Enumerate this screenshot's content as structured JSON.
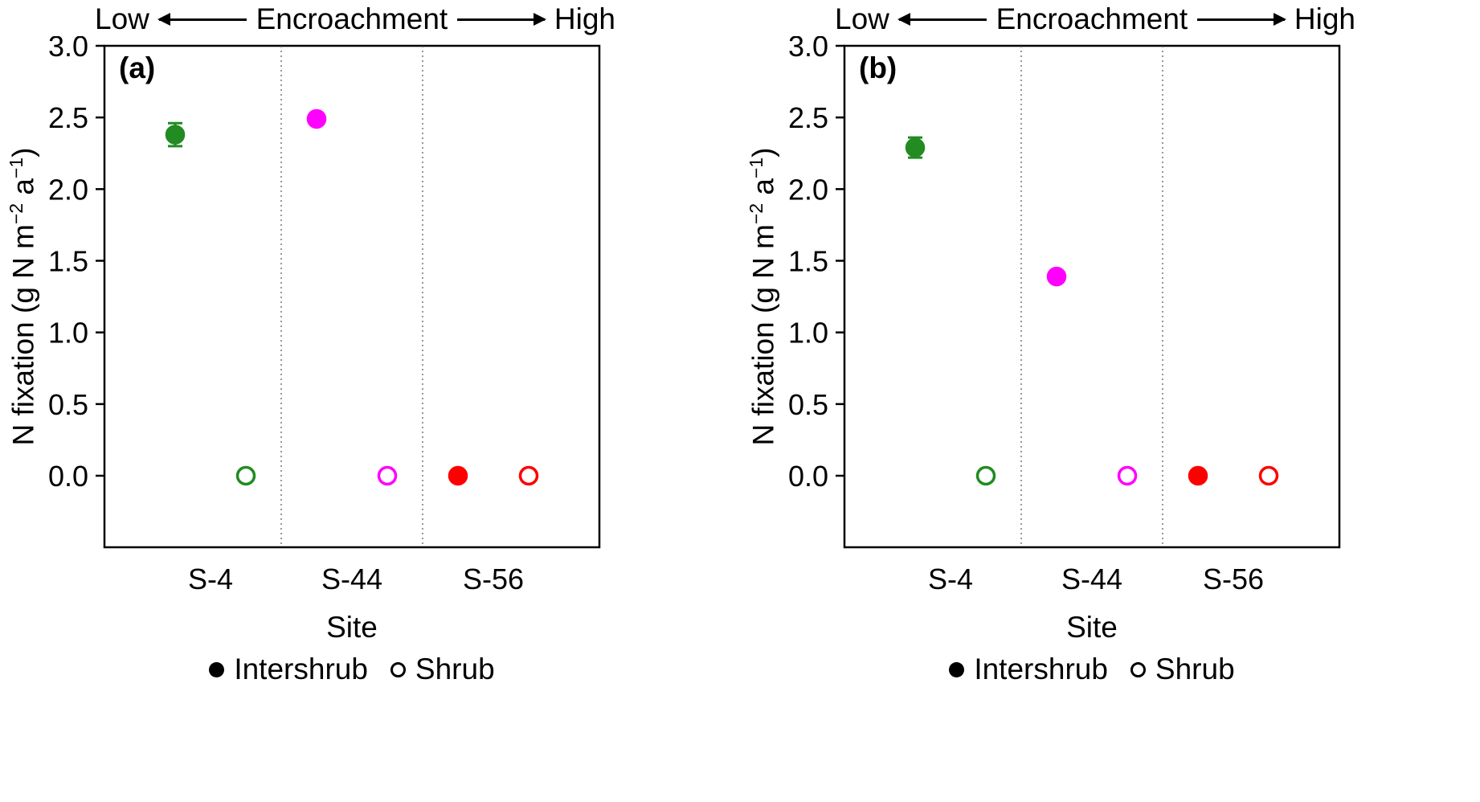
{
  "chart_data": {
    "type": "scatter",
    "title": "",
    "top_axis": {
      "low": "Low",
      "label": "Encroachment",
      "high": "High"
    },
    "xlabel": "Site",
    "ylabel": "N fixation (g N m^-2 a^-1)",
    "ylabel_parts": {
      "t1": "N fixation (g N m",
      "s1": "−2",
      "t2": " a",
      "s2": "−1",
      "t3": ")"
    },
    "ylim": [
      -0.5,
      3.0
    ],
    "yticks": [
      3,
      2.5,
      2,
      1.5,
      1,
      0.5,
      0
    ],
    "grid": false,
    "sites": [
      "S-4",
      "S-44",
      "S-56"
    ],
    "site_order_note": "encroachment increases left to right",
    "site_colors": {
      "S-4": "#228B22",
      "S-44": "#FF00FF",
      "S-56": "#FF0000"
    },
    "legend": [
      {
        "label": "Intershrub",
        "marker": "filled"
      },
      {
        "label": "Shrub",
        "marker": "open"
      }
    ],
    "legend_position": "bottom",
    "panels": [
      {
        "label": "(a)",
        "points": [
          {
            "site": "S-4",
            "series": "Intershrub",
            "value": 2.38,
            "error": 0.08
          },
          {
            "site": "S-4",
            "series": "Shrub",
            "value": 0.0,
            "error": 0
          },
          {
            "site": "S-44",
            "series": "Intershrub",
            "value": 2.49,
            "error": 0
          },
          {
            "site": "S-44",
            "series": "Shrub",
            "value": 0.0,
            "error": 0
          },
          {
            "site": "S-56",
            "series": "Intershrub",
            "value": 0.0,
            "error": 0
          },
          {
            "site": "S-56",
            "series": "Shrub",
            "value": 0.0,
            "error": 0
          }
        ]
      },
      {
        "label": "(b)",
        "points": [
          {
            "site": "S-4",
            "series": "Intershrub",
            "value": 2.29,
            "error": 0.07
          },
          {
            "site": "S-4",
            "series": "Shrub",
            "value": 0.0,
            "error": 0
          },
          {
            "site": "S-44",
            "series": "Intershrub",
            "value": 1.39,
            "error": 0
          },
          {
            "site": "S-44",
            "series": "Shrub",
            "value": 0.0,
            "error": 0
          },
          {
            "site": "S-56",
            "series": "Intershrub",
            "value": 0.0,
            "error": 0
          },
          {
            "site": "S-56",
            "series": "Shrub",
            "value": 0.0,
            "error": 0
          }
        ]
      }
    ]
  }
}
